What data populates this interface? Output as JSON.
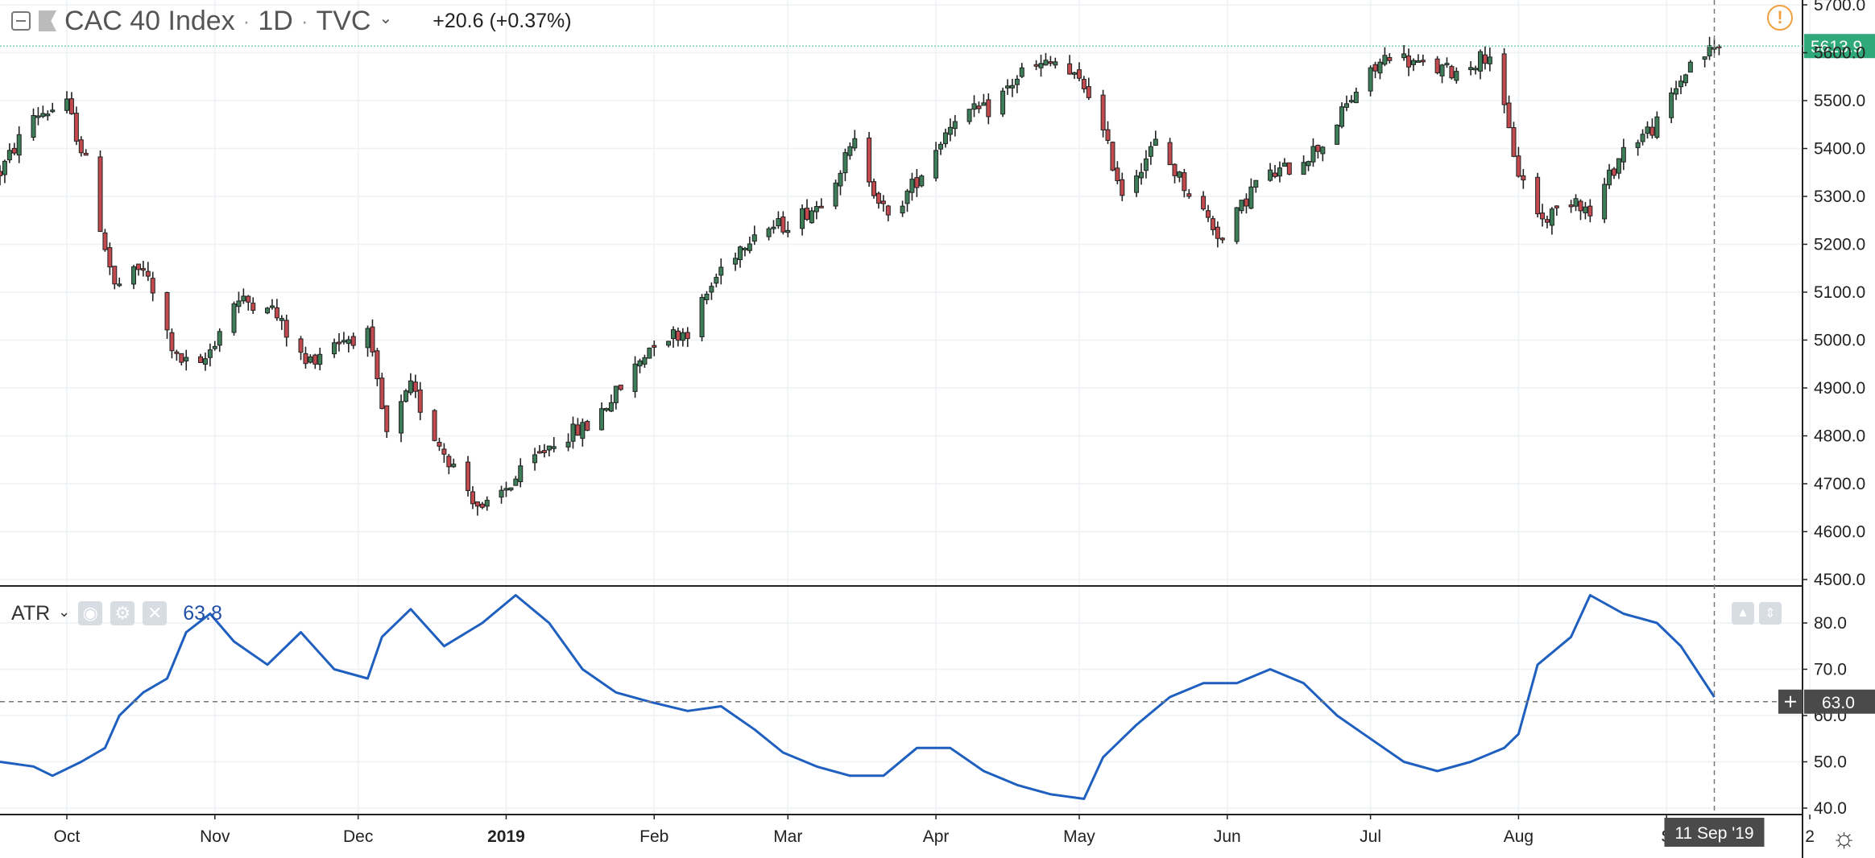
{
  "header": {
    "symbol": "CAC 40 Index",
    "interval": "1D",
    "source": "TVC",
    "change": "+20.6 (+0.37%)",
    "separator": "·"
  },
  "colors": {
    "up": "#3d7d57",
    "down": "#c2494e",
    "wick": "#222222",
    "grid": "#eef2f5",
    "atr_line": "#1f5fbf",
    "last_price_bg": "#2fa87a",
    "crosshair_label_bg": "#4a4a4a"
  },
  "icons": [
    "collapse-icon",
    "flag-icon",
    "warning-icon",
    "eye-icon",
    "gear-icon",
    "close-icon",
    "arrow-up-icon",
    "arrow-down-icon",
    "crosshair-plus-icon",
    "settings-sun-icon"
  ],
  "atr_header": {
    "name": "ATR",
    "value": "63.8"
  },
  "last_price_label": "5613.9",
  "crosshair": {
    "value_label": "63.0",
    "date_label": "11 Sep '19",
    "atr_value": 63.0
  },
  "x_axis_labels": [
    "Oct",
    "Nov",
    "Dec",
    "2019",
    "Feb",
    "Mar",
    "Apr",
    "May",
    "Jun",
    "Jul",
    "Aug",
    "S",
    "2"
  ],
  "chart_data": [
    {
      "type": "candlestick",
      "title": "CAC 40 Index · 1D · TVC",
      "ylim": [
        4500,
        5700
      ],
      "ytick_labels": [
        "5700.0",
        "5600.0",
        "5500.0",
        "5400.0",
        "5300.0",
        "5200.0",
        "5100.0",
        "5000.0",
        "4900.0",
        "4800.0",
        "4700.0",
        "4600.0",
        "4500.0"
      ],
      "last_price": 5613.9,
      "x_range": [
        "2018-09-17",
        "2019-09-18"
      ],
      "anchors": [
        [
          "2018-09-17",
          5350
        ],
        [
          "2018-09-24",
          5470
        ],
        [
          "2018-10-01",
          5490
        ],
        [
          "2018-10-05",
          5370
        ],
        [
          "2018-10-11",
          5110
        ],
        [
          "2018-10-17",
          5150
        ],
        [
          "2018-10-24",
          4960
        ],
        [
          "2018-10-29",
          4940
        ],
        [
          "2018-11-05",
          5080
        ],
        [
          "2018-11-12",
          5080
        ],
        [
          "2018-11-20",
          4950
        ],
        [
          "2018-11-26",
          5000
        ],
        [
          "2018-12-03",
          5010
        ],
        [
          "2018-12-07",
          4800
        ],
        [
          "2018-12-12",
          4900
        ],
        [
          "2018-12-17",
          4800
        ],
        [
          "2018-12-27",
          4640
        ],
        [
          "2019-01-04",
          4720
        ],
        [
          "2019-01-11",
          4790
        ],
        [
          "2019-01-18",
          4820
        ],
        [
          "2019-01-25",
          4900
        ],
        [
          "2019-02-01",
          5000
        ],
        [
          "2019-02-08",
          5020
        ],
        [
          "2019-02-15",
          5150
        ],
        [
          "2019-02-22",
          5230
        ],
        [
          "2019-02-28",
          5240
        ],
        [
          "2019-03-07",
          5280
        ],
        [
          "2019-03-15",
          5410
        ],
        [
          "2019-03-22",
          5250
        ],
        [
          "2019-03-29",
          5350
        ],
        [
          "2019-04-05",
          5470
        ],
        [
          "2019-04-12",
          5480
        ],
        [
          "2019-04-19",
          5560
        ],
        [
          "2019-04-26",
          5580
        ],
        [
          "2019-05-03",
          5520
        ],
        [
          "2019-05-10",
          5310
        ],
        [
          "2019-05-17",
          5410
        ],
        [
          "2019-05-24",
          5310
        ],
        [
          "2019-05-31",
          5210
        ],
        [
          "2019-06-07",
          5330
        ],
        [
          "2019-06-14",
          5360
        ],
        [
          "2019-06-21",
          5410
        ],
        [
          "2019-06-28",
          5520
        ],
        [
          "2019-07-05",
          5600
        ],
        [
          "2019-07-12",
          5570
        ],
        [
          "2019-07-19",
          5560
        ],
        [
          "2019-07-26",
          5600
        ],
        [
          "2019-08-01",
          5350
        ],
        [
          "2019-08-06",
          5250
        ],
        [
          "2019-08-13",
          5300
        ],
        [
          "2019-08-16",
          5260
        ],
        [
          "2019-08-23",
          5400
        ],
        [
          "2019-08-30",
          5450
        ],
        [
          "2019-09-06",
          5580
        ],
        [
          "2019-09-12",
          5615
        ]
      ]
    },
    {
      "type": "line",
      "title": "ATR",
      "ylim": [
        40,
        85
      ],
      "ytick_labels": [
        "80.0",
        "70.0",
        "60.0",
        "50.0",
        "40.0"
      ],
      "series": [
        {
          "name": "ATR",
          "points": [
            [
              "2018-09-17",
              50
            ],
            [
              "2018-09-24",
              49
            ],
            [
              "2018-09-28",
              47
            ],
            [
              "2018-10-04",
              50
            ],
            [
              "2018-10-09",
              53
            ],
            [
              "2018-10-12",
              60
            ],
            [
              "2018-10-17",
              65
            ],
            [
              "2018-10-22",
              68
            ],
            [
              "2018-10-26",
              78
            ],
            [
              "2018-10-31",
              82
            ],
            [
              "2018-11-05",
              76
            ],
            [
              "2018-11-12",
              71
            ],
            [
              "2018-11-19",
              78
            ],
            [
              "2018-11-26",
              70
            ],
            [
              "2018-12-03",
              68
            ],
            [
              "2018-12-06",
              77
            ],
            [
              "2018-12-12",
              83
            ],
            [
              "2018-12-19",
              75
            ],
            [
              "2018-12-27",
              80
            ],
            [
              "2019-01-03",
              86
            ],
            [
              "2019-01-10",
              80
            ],
            [
              "2019-01-17",
              70
            ],
            [
              "2019-01-24",
              65
            ],
            [
              "2019-01-31",
              63
            ],
            [
              "2019-02-08",
              61
            ],
            [
              "2019-02-15",
              62
            ],
            [
              "2019-02-22",
              57
            ],
            [
              "2019-02-28",
              52
            ],
            [
              "2019-03-07",
              49
            ],
            [
              "2019-03-14",
              47
            ],
            [
              "2019-03-21",
              47
            ],
            [
              "2019-03-28",
              53
            ],
            [
              "2019-04-04",
              53
            ],
            [
              "2019-04-11",
              48
            ],
            [
              "2019-04-18",
              45
            ],
            [
              "2019-04-25",
              43
            ],
            [
              "2019-05-02",
              42
            ],
            [
              "2019-05-06",
              51
            ],
            [
              "2019-05-13",
              58
            ],
            [
              "2019-05-20",
              64
            ],
            [
              "2019-05-27",
              67
            ],
            [
              "2019-06-03",
              67
            ],
            [
              "2019-06-10",
              70
            ],
            [
              "2019-06-17",
              67
            ],
            [
              "2019-06-24",
              60
            ],
            [
              "2019-07-01",
              55
            ],
            [
              "2019-07-08",
              50
            ],
            [
              "2019-07-15",
              48
            ],
            [
              "2019-07-22",
              50
            ],
            [
              "2019-07-29",
              53
            ],
            [
              "2019-08-01",
              56
            ],
            [
              "2019-08-05",
              71
            ],
            [
              "2019-08-12",
              77
            ],
            [
              "2019-08-16",
              86
            ],
            [
              "2019-08-23",
              82
            ],
            [
              "2019-08-30",
              80
            ],
            [
              "2019-09-04",
              75
            ],
            [
              "2019-09-11",
              64
            ]
          ]
        }
      ]
    }
  ]
}
